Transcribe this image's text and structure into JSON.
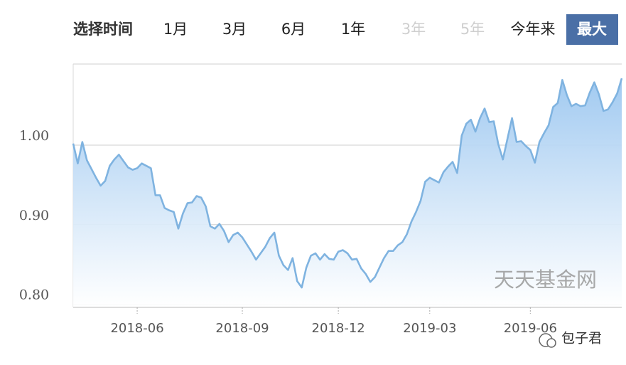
{
  "header": {
    "label": "选择时间",
    "tabs": [
      "1月",
      "3月",
      "6月",
      "1年",
      "3年",
      "5年",
      "今年来",
      "最大"
    ]
  },
  "watermark": "天天基金网",
  "account": "包子君",
  "chart_data": {
    "type": "area",
    "color": "#7fb3e0",
    "fill_top": "#9cc7f0",
    "grid": true,
    "ylim": [
      0.796,
      1.102
    ],
    "yticks": [
      {
        "value": 0.8,
        "label": "0.80"
      },
      {
        "value": 0.9,
        "label": "0.90"
      },
      {
        "value": 1.0,
        "label": "1.00"
      }
    ],
    "categories": [
      null,
      null,
      null,
      null,
      null,
      null,
      null,
      null,
      null,
      null,
      null,
      null,
      null,
      null,
      "2018-06",
      null,
      null,
      null,
      null,
      null,
      null,
      null,
      null,
      null,
      null,
      null,
      null,
      null,
      null,
      null,
      null,
      null,
      null,
      null,
      null,
      null,
      null,
      "2018-09",
      null,
      null,
      null,
      null,
      null,
      null,
      null,
      null,
      null,
      null,
      null,
      null,
      null,
      null,
      null,
      null,
      null,
      null,
      null,
      null,
      "2018-12",
      null,
      null,
      null,
      null,
      null,
      null,
      null,
      null,
      null,
      null,
      null,
      null,
      null,
      null,
      null,
      null,
      null,
      null,
      null,
      "2019-03",
      null,
      null,
      null,
      null,
      null,
      null,
      null,
      null,
      null,
      null,
      null,
      null,
      null,
      null,
      null,
      null,
      null,
      null,
      null,
      null,
      null,
      "2019-06",
      null,
      null,
      null,
      null,
      null,
      null,
      null,
      null,
      null,
      null,
      null,
      null,
      null,
      null,
      null,
      null,
      null,
      null,
      null,
      null
    ],
    "values": [
      1.002,
      0.977,
      1.004,
      0.981,
      0.97,
      0.959,
      0.949,
      0.955,
      0.974,
      0.982,
      0.988,
      0.98,
      0.972,
      0.969,
      0.971,
      0.977,
      0.974,
      0.971,
      0.937,
      0.937,
      0.921,
      0.918,
      0.916,
      0.895,
      0.914,
      0.927,
      0.928,
      0.936,
      0.934,
      0.923,
      0.898,
      0.895,
      0.901,
      0.892,
      0.878,
      0.887,
      0.89,
      0.884,
      0.875,
      0.866,
      0.856,
      0.864,
      0.872,
      0.883,
      0.89,
      0.861,
      0.849,
      0.843,
      0.858,
      0.829,
      0.821,
      0.846,
      0.861,
      0.864,
      0.856,
      0.863,
      0.857,
      0.856,
      0.866,
      0.868,
      0.864,
      0.856,
      0.857,
      0.845,
      0.838,
      0.828,
      0.834,
      0.846,
      0.858,
      0.867,
      0.867,
      0.874,
      0.878,
      0.888,
      0.904,
      0.916,
      0.93,
      0.954,
      0.959,
      0.956,
      0.953,
      0.966,
      0.973,
      0.979,
      0.965,
      1.012,
      1.027,
      1.032,
      1.017,
      1.034,
      1.046,
      1.029,
      1.03,
      1.001,
      0.982,
      1.008,
      1.034,
      1.004,
      1.005,
      0.999,
      0.994,
      0.978,
      1.004,
      1.015,
      1.025,
      1.048,
      1.053,
      1.082,
      1.063,
      1.049,
      1.052,
      1.049,
      1.05,
      1.066,
      1.079,
      1.064,
      1.043,
      1.045,
      1.054,
      1.065,
      1.084
    ]
  }
}
